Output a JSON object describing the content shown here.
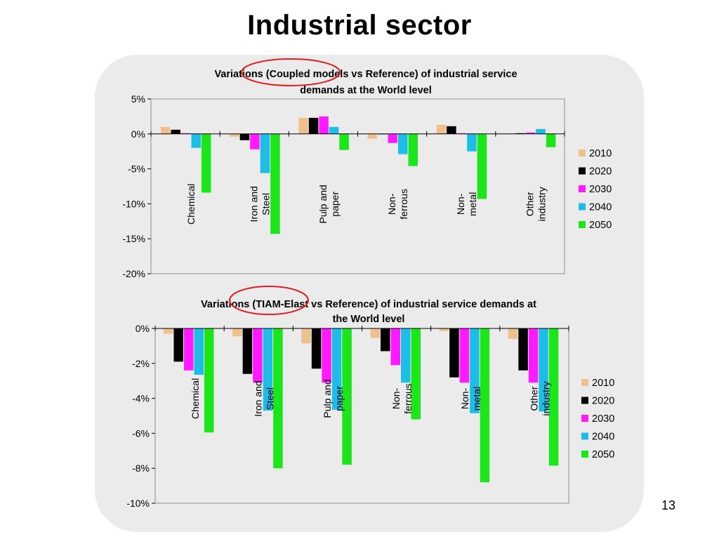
{
  "slide": {
    "title": "Industrial sector",
    "page_number": "13"
  },
  "colors": {
    "2010": "#f0c08c",
    "2020": "#000000",
    "2030": "#ff1aff",
    "2040": "#1ebde8",
    "2050": "#1ae61a",
    "highlight_circle": "#e02020",
    "panel_background": "#ebebeb"
  },
  "chart_data": [
    {
      "type": "bar",
      "title_lines": [
        "Variations (Coupled models vs Reference) of industrial service",
        "demands at the World level"
      ],
      "categories": [
        [
          "Chemical"
        ],
        [
          "Iron and",
          "Steel"
        ],
        [
          "Pulp and",
          "paper"
        ],
        [
          "Non-",
          "ferrous"
        ],
        [
          "Non-",
          "metal"
        ],
        [
          "Other",
          "industry"
        ]
      ],
      "series": [
        {
          "name": "2010",
          "values": [
            1.0,
            -0.4,
            2.3,
            -0.7,
            1.3,
            0.0
          ]
        },
        {
          "name": "2020",
          "values": [
            0.6,
            -0.9,
            2.3,
            0.0,
            1.1,
            0.1
          ]
        },
        {
          "name": "2030",
          "values": [
            0.1,
            -2.2,
            2.5,
            -1.3,
            0.1,
            0.2
          ]
        },
        {
          "name": "2040",
          "values": [
            -2.0,
            -5.6,
            1.0,
            -2.9,
            -2.5,
            0.7
          ]
        },
        {
          "name": "2050",
          "values": [
            -8.4,
            -14.3,
            -2.3,
            -4.6,
            -9.3,
            -1.9
          ]
        }
      ],
      "ylim": [
        -20,
        5
      ],
      "yticks": [
        5,
        0,
        -5,
        -10,
        -15,
        -20
      ],
      "ytick_labels": [
        "5%",
        "0%",
        "-5%",
        "-10%",
        "-15%",
        "-20%"
      ],
      "legend_placement": "right",
      "highlighted_text": "Coupled models"
    },
    {
      "type": "bar",
      "title_lines": [
        "Variations (TIAM-Elast vs Reference) of industrial service demands at",
        "the World level"
      ],
      "categories": [
        [
          "Chemical"
        ],
        [
          "Iron and",
          "Steel"
        ],
        [
          "Pulp and",
          "paper"
        ],
        [
          "Non-",
          "ferrous"
        ],
        [
          "Non-",
          "metal"
        ],
        [
          "Other",
          "industry"
        ]
      ],
      "series": [
        {
          "name": "2010",
          "values": [
            -0.3,
            -0.45,
            -0.85,
            -0.55,
            -0.15,
            -0.6
          ]
        },
        {
          "name": "2020",
          "values": [
            -1.9,
            -2.6,
            -2.3,
            -1.3,
            -2.8,
            -2.4
          ]
        },
        {
          "name": "2030",
          "values": [
            -2.4,
            -3.1,
            -3.1,
            -2.1,
            -3.1,
            -3.1
          ]
        },
        {
          "name": "2040",
          "values": [
            -2.65,
            -4.7,
            -4.65,
            -3.1,
            -4.85,
            -4.75
          ]
        },
        {
          "name": "2050",
          "values": [
            -5.95,
            -8.0,
            -7.8,
            -5.2,
            -8.8,
            -7.85
          ]
        }
      ],
      "ylim": [
        -10,
        0
      ],
      "yticks": [
        0,
        -2,
        -4,
        -6,
        -8,
        -10
      ],
      "ytick_labels": [
        "0%",
        "-2%",
        "-4%",
        "-6%",
        "-8%",
        "-10%"
      ],
      "legend_placement": "right",
      "highlighted_text": "TIAM-Elast"
    }
  ]
}
